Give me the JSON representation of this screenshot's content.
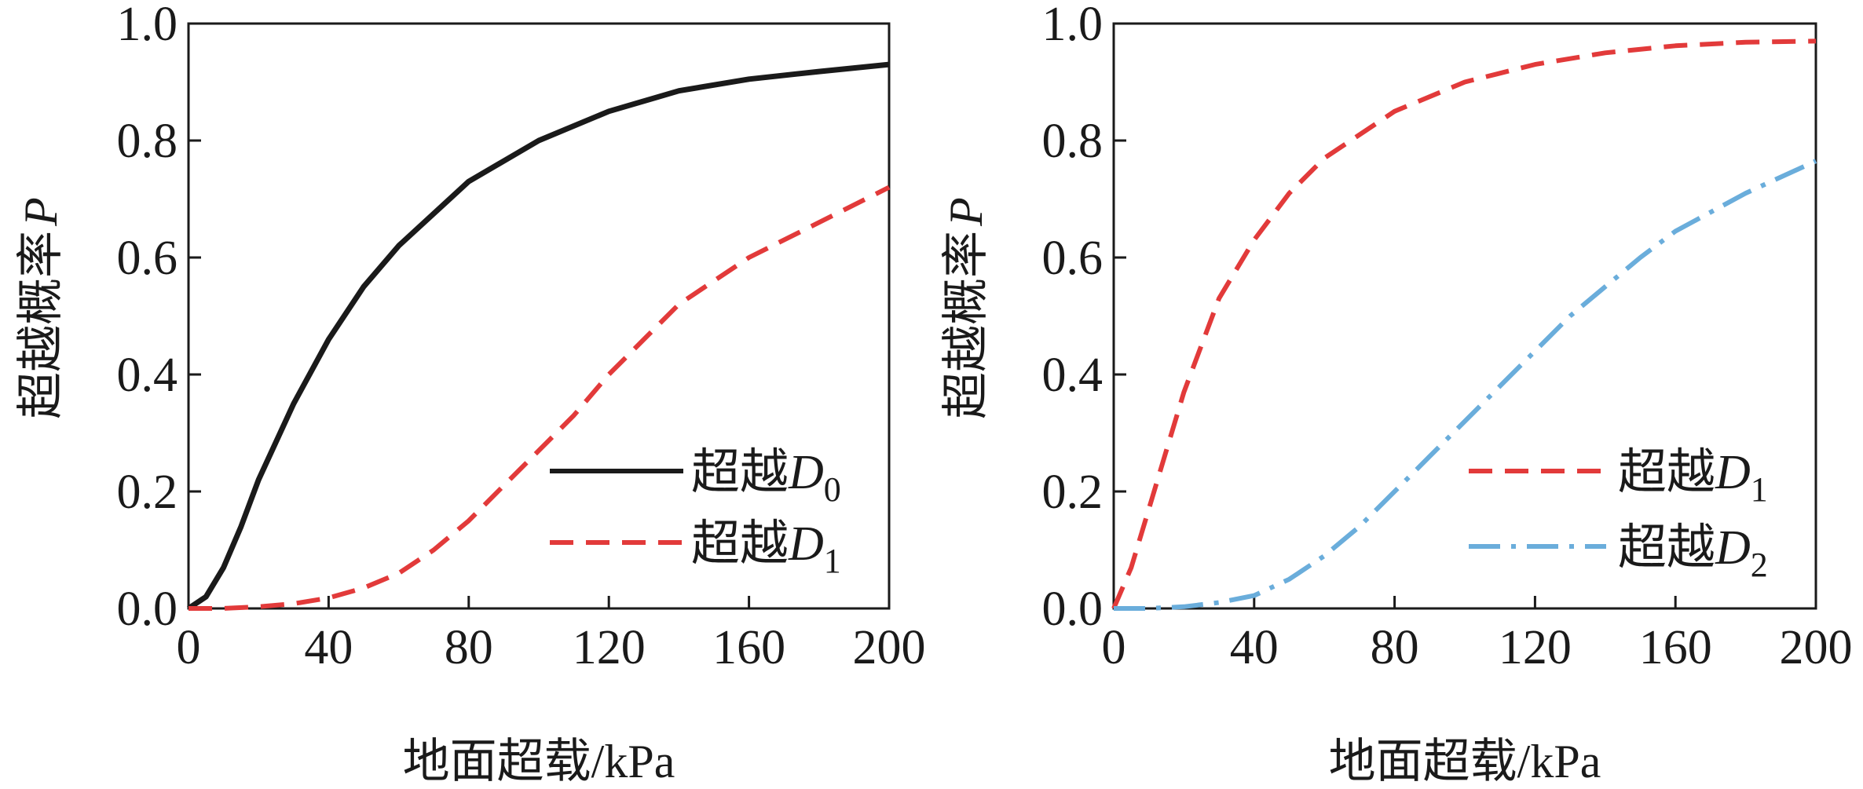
{
  "chart_data": [
    {
      "type": "line",
      "xlabel": "地面超载/kPa",
      "ylabel_main": "超越概率",
      "ylabel_var": "P",
      "xlim": [
        0,
        200
      ],
      "ylim": [
        0,
        1.0
      ],
      "x_ticks": [
        "0",
        "40",
        "80",
        "120",
        "160",
        "200"
      ],
      "y_ticks": [
        "0.0",
        "0.2",
        "0.4",
        "0.6",
        "0.8",
        "1.0"
      ],
      "grid": false,
      "legend_position": "bottom-right",
      "series": [
        {
          "name": "超越D0",
          "label_main": "超越",
          "label_var": "D",
          "label_sub": "0",
          "color": "#1a1a1a",
          "style": "solid",
          "x": [
            0,
            5,
            10,
            15,
            20,
            30,
            40,
            50,
            60,
            80,
            100,
            120,
            140,
            160,
            180,
            200
          ],
          "y": [
            0.0,
            0.02,
            0.07,
            0.14,
            0.22,
            0.35,
            0.46,
            0.55,
            0.62,
            0.73,
            0.8,
            0.85,
            0.885,
            0.905,
            0.918,
            0.93
          ]
        },
        {
          "name": "超越D1",
          "label_main": "超越",
          "label_var": "D",
          "label_sub": "1",
          "color": "#e23a3a",
          "style": "dashed",
          "x": [
            0,
            10,
            20,
            30,
            40,
            50,
            60,
            70,
            80,
            90,
            100,
            110,
            120,
            130,
            140,
            160,
            180,
            200
          ],
          "y": [
            0.0,
            0.0,
            0.003,
            0.008,
            0.018,
            0.035,
            0.06,
            0.1,
            0.15,
            0.21,
            0.27,
            0.33,
            0.4,
            0.46,
            0.52,
            0.6,
            0.66,
            0.72
          ]
        }
      ]
    },
    {
      "type": "line",
      "xlabel": "地面超载/kPa",
      "ylabel_main": "超越概率",
      "ylabel_var": "P",
      "xlim": [
        0,
        200
      ],
      "ylim": [
        0,
        1.0
      ],
      "x_ticks": [
        "0",
        "40",
        "80",
        "120",
        "160",
        "200"
      ],
      "y_ticks": [
        "0.0",
        "0.2",
        "0.4",
        "0.6",
        "0.8",
        "1.0"
      ],
      "grid": false,
      "legend_position": "bottom-right",
      "series": [
        {
          "name": "超越D1",
          "label_main": "超越",
          "label_var": "D",
          "label_sub": "1",
          "color": "#e23a3a",
          "style": "dashed",
          "x": [
            0,
            5,
            10,
            15,
            20,
            30,
            40,
            50,
            60,
            80,
            100,
            120,
            140,
            160,
            180,
            200
          ],
          "y": [
            0.0,
            0.07,
            0.17,
            0.27,
            0.37,
            0.53,
            0.63,
            0.71,
            0.77,
            0.85,
            0.9,
            0.93,
            0.95,
            0.962,
            0.968,
            0.97
          ]
        },
        {
          "name": "超越D2",
          "label_main": "超越",
          "label_var": "D",
          "label_sub": "2",
          "color": "#6aaddb",
          "style": "dashdot",
          "x": [
            0,
            10,
            20,
            30,
            40,
            50,
            60,
            70,
            80,
            90,
            100,
            110,
            120,
            130,
            140,
            150,
            160,
            180,
            200
          ],
          "y": [
            0.0,
            0.0,
            0.003,
            0.01,
            0.022,
            0.05,
            0.09,
            0.14,
            0.2,
            0.26,
            0.32,
            0.38,
            0.44,
            0.5,
            0.55,
            0.6,
            0.645,
            0.71,
            0.765
          ]
        }
      ]
    }
  ]
}
